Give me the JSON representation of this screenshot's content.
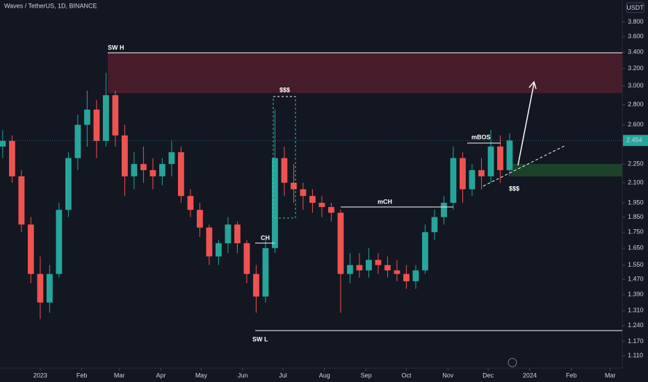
{
  "header": {
    "symbol": "Waves / TetherUS, 1D, BINANCE",
    "currency": "USDT"
  },
  "annotations": [
    "SW H",
    "$$$",
    "CH",
    "mCH",
    "mBOS",
    "$$$",
    "SW L"
  ],
  "chart_data": {
    "type": "candlestick",
    "log_scale": true,
    "up_color": "#26a69a",
    "down_color": "#ef5350",
    "last_price": 2.454,
    "last_price_label": "2.454",
    "xlim": [
      -30,
      434
    ],
    "ylim": [
      1.06,
      4.12
    ],
    "xticks": [
      {
        "value": 0,
        "label": "2023"
      },
      {
        "value": 31,
        "label": "Feb"
      },
      {
        "value": 59,
        "label": "Mar"
      },
      {
        "value": 90,
        "label": "Apr"
      },
      {
        "value": 120,
        "label": "May"
      },
      {
        "value": 151,
        "label": "Jun"
      },
      {
        "value": 181,
        "label": "Jul"
      },
      {
        "value": 212,
        "label": "Aug"
      },
      {
        "value": 243,
        "label": "Sep"
      },
      {
        "value": 273,
        "label": "Oct"
      },
      {
        "value": 304,
        "label": "Nov"
      },
      {
        "value": 334,
        "label": "Dec"
      },
      {
        "value": 365,
        "label": "2024"
      },
      {
        "value": 396,
        "label": "Feb"
      },
      {
        "value": 425,
        "label": "Mar"
      }
    ],
    "yticks": [
      {
        "value": 3.8,
        "label": "3.800"
      },
      {
        "value": 3.6,
        "label": "3.600"
      },
      {
        "value": 3.4,
        "label": "3.400"
      },
      {
        "value": 3.2,
        "label": "3.200"
      },
      {
        "value": 3.0,
        "label": "3.000"
      },
      {
        "value": 2.8,
        "label": "2.800"
      },
      {
        "value": 2.6,
        "label": "2.600"
      },
      {
        "value": 2.25,
        "label": "2.250"
      },
      {
        "value": 2.1,
        "label": "2.100"
      },
      {
        "value": 1.95,
        "label": "1.950"
      },
      {
        "value": 1.85,
        "label": "1.850"
      },
      {
        "value": 1.75,
        "label": "1.750"
      },
      {
        "value": 1.65,
        "label": "1.650"
      },
      {
        "value": 1.55,
        "label": "1.550"
      },
      {
        "value": 1.47,
        "label": "1.470"
      },
      {
        "value": 1.39,
        "label": "1.390"
      },
      {
        "value": 1.31,
        "label": "1.310"
      },
      {
        "value": 1.24,
        "label": "1.240"
      },
      {
        "value": 1.17,
        "label": "1.170"
      },
      {
        "value": 1.11,
        "label": "1.110"
      }
    ],
    "x": [
      -28,
      -21,
      -14,
      -7,
      0,
      7,
      14,
      21,
      28,
      35,
      42,
      49,
      56,
      63,
      70,
      77,
      84,
      91,
      98,
      105,
      112,
      119,
      126,
      133,
      140,
      147,
      154,
      161,
      168,
      175,
      182,
      189,
      196,
      203,
      210,
      217,
      224,
      231,
      238,
      245,
      252,
      259,
      266,
      273,
      280,
      287,
      294,
      301,
      308,
      315,
      322,
      329,
      336,
      343,
      350
    ],
    "open": [
      2.4,
      2.45,
      2.15,
      1.8,
      1.5,
      1.35,
      1.5,
      1.9,
      2.3,
      2.6,
      2.75,
      2.45,
      2.9,
      2.5,
      2.15,
      2.25,
      2.2,
      2.15,
      2.25,
      2.35,
      2.0,
      1.9,
      1.78,
      1.6,
      1.68,
      1.8,
      1.68,
      1.5,
      1.38,
      1.65,
      2.3,
      2.1,
      2.05,
      2.0,
      1.95,
      1.92,
      1.88,
      1.5,
      1.55,
      1.52,
      1.58,
      1.55,
      1.52,
      1.5,
      1.46,
      1.52,
      1.75,
      1.85,
      1.95,
      2.3,
      2.05,
      2.2,
      2.15,
      2.4,
      2.2
    ],
    "high": [
      2.55,
      2.5,
      2.2,
      1.85,
      1.6,
      1.55,
      1.95,
      2.35,
      2.7,
      2.95,
      2.85,
      3.15,
      2.95,
      2.6,
      2.35,
      2.4,
      2.3,
      2.3,
      2.45,
      2.4,
      2.05,
      1.95,
      1.8,
      1.7,
      1.85,
      1.82,
      1.7,
      1.55,
      1.7,
      2.75,
      2.4,
      2.25,
      2.1,
      2.05,
      2.0,
      1.95,
      1.9,
      1.62,
      1.62,
      1.65,
      1.62,
      1.6,
      1.58,
      1.55,
      1.55,
      1.8,
      1.9,
      2.0,
      2.4,
      2.35,
      2.25,
      2.3,
      2.55,
      2.5,
      2.52
    ],
    "low": [
      2.3,
      2.1,
      1.75,
      1.45,
      1.27,
      1.3,
      1.48,
      1.85,
      2.2,
      2.4,
      2.3,
      2.4,
      2.4,
      2.0,
      2.05,
      2.1,
      2.05,
      2.08,
      2.15,
      1.95,
      1.85,
      1.72,
      1.55,
      1.55,
      1.62,
      1.62,
      1.45,
      1.3,
      1.35,
      1.62,
      2.0,
      1.95,
      1.9,
      1.88,
      1.85,
      1.82,
      1.3,
      1.45,
      1.48,
      1.48,
      1.5,
      1.48,
      1.46,
      1.42,
      1.42,
      1.5,
      1.7,
      1.8,
      1.9,
      1.95,
      2.0,
      2.05,
      2.1,
      2.1,
      2.15
    ],
    "close": [
      2.45,
      2.15,
      1.8,
      1.5,
      1.35,
      1.5,
      1.9,
      2.3,
      2.6,
      2.75,
      2.45,
      2.9,
      2.5,
      2.15,
      2.25,
      2.2,
      2.15,
      2.25,
      2.35,
      2.0,
      1.9,
      1.78,
      1.6,
      1.68,
      1.8,
      1.68,
      1.5,
      1.38,
      1.65,
      2.3,
      2.1,
      2.05,
      2.0,
      1.95,
      1.92,
      1.88,
      1.5,
      1.55,
      1.52,
      1.58,
      1.55,
      1.52,
      1.5,
      1.46,
      1.52,
      1.75,
      1.85,
      1.95,
      2.3,
      2.05,
      2.2,
      2.15,
      2.4,
      2.2,
      2.454
    ]
  }
}
